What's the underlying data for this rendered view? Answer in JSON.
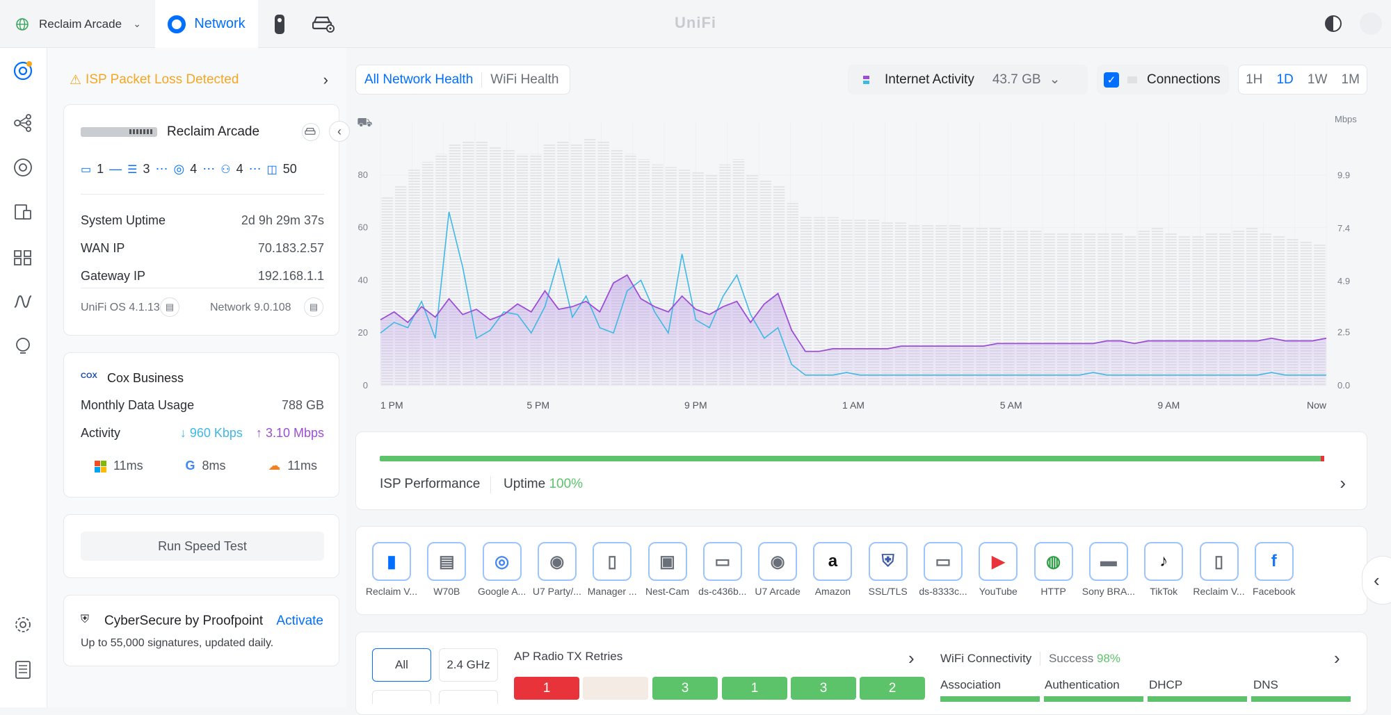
{
  "site": {
    "name": "Reclaim Arcade"
  },
  "nav": {
    "active_tab": "Network",
    "brand": "UniFi"
  },
  "alert": {
    "text": "ISP Packet Loss Detected"
  },
  "gateway": {
    "name": "Reclaim Arcade",
    "counts": [
      "1",
      "3",
      "4",
      "4",
      "50"
    ],
    "rows": [
      {
        "label": "System Uptime",
        "value": "2d 9h 29m 37s"
      },
      {
        "label": "WAN IP",
        "value": "70.183.2.57"
      },
      {
        "label": "Gateway IP",
        "value": "192.168.1.1"
      }
    ],
    "os_version": "UniFi OS 4.1.13",
    "network_version": "Network 9.0.108"
  },
  "isp": {
    "logo_text": "COX",
    "name": "Cox Business",
    "monthly_label": "Monthly Data Usage",
    "monthly_value": "788 GB",
    "activity_label": "Activity",
    "down": "960 Kbps",
    "up": "3.10 Mbps",
    "latencies": [
      "11ms",
      "8ms",
      "11ms"
    ]
  },
  "speedtest": {
    "label": "Run Speed Test"
  },
  "cybersecure": {
    "title": "CyberSecure by Proofpoint",
    "action": "Activate",
    "desc": "Up to 55,000 signatures, updated daily."
  },
  "health_tabs": {
    "all": "All Network Health",
    "wifi": "WiFi Health"
  },
  "activity": {
    "label": "Internet Activity",
    "value": "43.7 GB"
  },
  "connections": {
    "label": "Connections",
    "checked": true
  },
  "ranges": {
    "h1": "1H",
    "d1": "1D",
    "w1": "1W",
    "m1": "1M",
    "selected": "1D"
  },
  "chart_data": {
    "type": "area",
    "y_left_ticks": [
      "0",
      "20",
      "40",
      "60",
      "80"
    ],
    "y_right_unit": "Mbps",
    "y_right_ticks": [
      "0.0",
      "2.5",
      "4.9",
      "7.4",
      "9.9"
    ],
    "x_ticks": [
      "1 PM",
      "5 PM",
      "9 PM",
      "1 AM",
      "5 AM",
      "9 AM",
      "Now"
    ],
    "ylim_left": [
      0,
      100
    ],
    "ylim_right": [
      0,
      12.4
    ],
    "series": [
      {
        "values": [
          25,
          28,
          24,
          30,
          26,
          33,
          27,
          29,
          25,
          27,
          31,
          28,
          36,
          29,
          30,
          32,
          28,
          39,
          42,
          33,
          30,
          28,
          34,
          29,
          27,
          30,
          32,
          24,
          31,
          35,
          21,
          13,
          13,
          14,
          14,
          14,
          14,
          14,
          15,
          15,
          15,
          15,
          15,
          15,
          15,
          16,
          16,
          16,
          16,
          16,
          16,
          16,
          16,
          17,
          17,
          16,
          17,
          17,
          17,
          17,
          17,
          17,
          17,
          17,
          17,
          18,
          17,
          17,
          17,
          18
        ]
      },
      {
        "values": [
          20,
          24,
          22,
          32,
          18,
          66,
          45,
          18,
          21,
          28,
          27,
          20,
          30,
          48,
          26,
          34,
          22,
          20,
          36,
          40,
          28,
          20,
          50,
          25,
          22,
          34,
          42,
          27,
          18,
          22,
          8,
          4,
          4,
          4,
          5,
          4,
          4,
          4,
          4,
          4,
          4,
          4,
          4,
          4,
          4,
          4,
          4,
          4,
          4,
          4,
          4,
          4,
          5,
          4,
          4,
          4,
          4,
          4,
          4,
          4,
          4,
          4,
          4,
          4,
          4,
          5,
          4,
          4,
          4,
          4
        ]
      }
    ],
    "connection_bars": [
      72,
      76,
      82,
      85,
      88,
      92,
      93,
      93,
      91,
      90,
      88,
      88,
      92,
      93,
      92,
      94,
      93,
      90,
      88,
      86,
      84,
      83,
      82,
      81,
      80,
      84,
      86,
      80,
      78,
      76,
      70,
      64,
      64,
      64,
      63,
      63,
      63,
      62,
      62,
      61,
      61,
      61,
      61,
      60,
      60,
      60,
      59,
      59,
      59,
      58,
      58,
      58,
      58,
      58,
      58,
      57,
      59,
      60,
      58,
      57,
      57,
      58,
      58,
      59,
      60,
      58,
      57,
      56,
      55,
      54
    ]
  },
  "isp_perf": {
    "label": "ISP Performance",
    "uptime_label": "Uptime",
    "uptime_value": "100%"
  },
  "clients": [
    {
      "label": "Reclaim V...",
      "icon": "phone-icon"
    },
    {
      "label": "W70B",
      "icon": "printer-icon"
    },
    {
      "label": "Google A...",
      "icon": "google-assistant-icon"
    },
    {
      "label": "U7 Party/...",
      "icon": "access-point-icon"
    },
    {
      "label": "Manager ...",
      "icon": "device-icon"
    },
    {
      "label": "Nest-Cam",
      "icon": "camera-icon"
    },
    {
      "label": "ds-c436b...",
      "icon": "laptop-icon"
    },
    {
      "label": "U7 Arcade",
      "icon": "access-point-icon"
    },
    {
      "label": "Amazon",
      "icon": "amazon-icon"
    },
    {
      "label": "SSL/TLS",
      "icon": "lock-icon"
    },
    {
      "label": "ds-8333c...",
      "icon": "laptop-icon"
    },
    {
      "label": "YouTube",
      "icon": "youtube-icon"
    },
    {
      "label": "HTTP",
      "icon": "globe-icon"
    },
    {
      "label": "Sony BRA...",
      "icon": "tv-icon"
    },
    {
      "label": "TikTok",
      "icon": "tiktok-icon"
    },
    {
      "label": "Reclaim V...",
      "icon": "device-icon"
    },
    {
      "label": "Facebook",
      "icon": "facebook-icon"
    }
  ],
  "radio": {
    "all": "All",
    "band24": "2.4 GHz",
    "title": "AP Radio TX Retries",
    "cells": [
      "1",
      "",
      "3",
      "1",
      "3",
      "2"
    ]
  },
  "wifi_conn": {
    "title": "WiFi Connectivity",
    "success_label": "Success",
    "success_value": "98%",
    "stages": [
      "Association",
      "Authentication",
      "DHCP",
      "DNS"
    ]
  },
  "colors": {
    "accent": "#006fff",
    "alert": "#f5a623",
    "upload": "#9b4fd6",
    "download": "#3fb8e6",
    "good": "#5cc36a",
    "bad": "#e8333a"
  }
}
